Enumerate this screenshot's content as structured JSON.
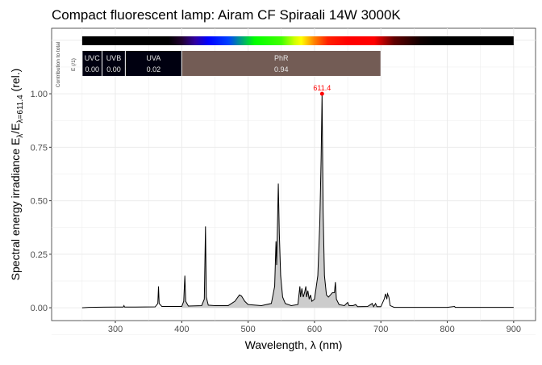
{
  "chart_data": {
    "type": "line",
    "title": "Compact fluorescent lamp: Airam CF Spiraali 14W 3000K",
    "xlabel": "Wavelength, λ (nm)",
    "ylabel": "Spectral energy irradiance E_λ/E_λ=611.4 (rel.)",
    "ylabel_main": "Spectral energy irradiance  E",
    "ylabel_sub1": "λ",
    "ylabel_mid": "/E",
    "ylabel_sub2": "λ=611.4",
    "ylabel_end": "  (rel.)",
    "xlim": [
      204,
      933
    ],
    "ylim": [
      -0.06,
      1.306
    ],
    "xticks": [
      300,
      400,
      500,
      600,
      700,
      800,
      900
    ],
    "yticks": [
      "0.00",
      "0.25",
      "0.50",
      "0.75",
      "1.00"
    ],
    "grid": true,
    "peak_label": "611.4",
    "peak": [
      611.4,
      1.0
    ],
    "fill_range": [
      400,
      700
    ],
    "colors": {
      "line": "#000000",
      "fill": "#cccccc",
      "peak": "#ff0000",
      "phr_box": "#735c55",
      "uv_box": "#000010"
    },
    "side_label_1": "Contribution  to  total",
    "side_label_2": "E  (/1)",
    "regions": [
      {
        "name": "UVC",
        "from": 250,
        "to": 280,
        "value": "0.00"
      },
      {
        "name": "UVB",
        "from": 280,
        "to": 315,
        "value": "0.00"
      },
      {
        "name": "UVA",
        "from": 315,
        "to": 400,
        "value": "0.02"
      },
      {
        "name": "PhR",
        "from": 400,
        "to": 700,
        "value": "0.94"
      }
    ],
    "spectrum": [
      [
        250,
        0
      ],
      [
        260,
        0.002
      ],
      [
        300,
        0.003
      ],
      [
        312,
        0.003
      ],
      [
        313,
        0.01
      ],
      [
        314,
        0.003
      ],
      [
        330,
        0.003
      ],
      [
        360,
        0.004
      ],
      [
        364,
        0.02
      ],
      [
        365,
        0.1
      ],
      [
        366,
        0.02
      ],
      [
        370,
        0.006
      ],
      [
        400,
        0.006
      ],
      [
        403,
        0.03
      ],
      [
        404.7,
        0.15
      ],
      [
        406,
        0.03
      ],
      [
        410,
        0.008
      ],
      [
        430,
        0.01
      ],
      [
        434,
        0.04
      ],
      [
        435.8,
        0.38
      ],
      [
        437,
        0.05
      ],
      [
        440,
        0.012
      ],
      [
        450,
        0.01
      ],
      [
        470,
        0.01
      ],
      [
        480,
        0.03
      ],
      [
        487,
        0.06
      ],
      [
        490,
        0.055
      ],
      [
        495,
        0.03
      ],
      [
        500,
        0.015
      ],
      [
        520,
        0.01
      ],
      [
        535,
        0.02
      ],
      [
        540,
        0.1
      ],
      [
        542,
        0.31
      ],
      [
        543,
        0.2
      ],
      [
        544,
        0.35
      ],
      [
        545.5,
        0.58
      ],
      [
        547,
        0.35
      ],
      [
        549,
        0.15
      ],
      [
        552,
        0.05
      ],
      [
        556,
        0.02
      ],
      [
        565,
        0.01
      ],
      [
        575,
        0.015
      ],
      [
        578,
        0.1
      ],
      [
        579,
        0.05
      ],
      [
        581,
        0.09
      ],
      [
        583,
        0.05
      ],
      [
        585,
        0.07
      ],
      [
        587,
        0.1
      ],
      [
        588,
        0.05
      ],
      [
        590,
        0.08
      ],
      [
        592,
        0.04
      ],
      [
        594,
        0.06
      ],
      [
        596,
        0.03
      ],
      [
        600,
        0.04
      ],
      [
        605,
        0.15
      ],
      [
        608,
        0.4
      ],
      [
        610,
        0.7
      ],
      [
        611.4,
        1.0
      ],
      [
        613,
        0.45
      ],
      [
        615,
        0.15
      ],
      [
        618,
        0.06
      ],
      [
        621,
        0.05
      ],
      [
        624,
        0.06
      ],
      [
        627,
        0.07
      ],
      [
        630,
        0.07
      ],
      [
        631.5,
        0.12
      ],
      [
        633,
        0.04
      ],
      [
        637,
        0.015
      ],
      [
        645,
        0.01
      ],
      [
        650,
        0.025
      ],
      [
        652,
        0.01
      ],
      [
        658,
        0.01
      ],
      [
        662,
        0.015
      ],
      [
        665,
        0.005
      ],
      [
        680,
        0.006
      ],
      [
        687,
        0.02
      ],
      [
        689,
        0.005
      ],
      [
        692,
        0.02
      ],
      [
        694,
        0.005
      ],
      [
        700,
        0.005
      ],
      [
        705,
        0.04
      ],
      [
        707,
        0.065
      ],
      [
        709,
        0.04
      ],
      [
        710,
        0.065
      ],
      [
        712,
        0.05
      ],
      [
        714,
        0.01
      ],
      [
        720,
        0.002
      ],
      [
        800,
        0.002
      ],
      [
        811,
        0.006
      ],
      [
        812,
        0.002
      ],
      [
        900,
        0.002
      ]
    ]
  }
}
